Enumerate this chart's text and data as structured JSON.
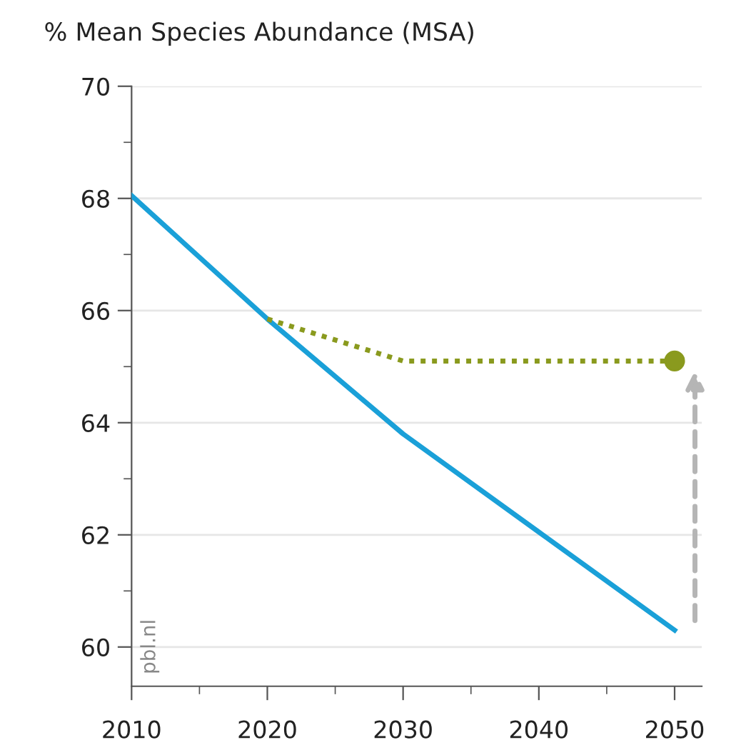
{
  "chart_data": {
    "type": "line",
    "title": "% Mean Species Abundance (MSA)",
    "x": [
      2010,
      2020,
      2030,
      2040,
      2050
    ],
    "series": [
      {
        "color": "#1aa0d8",
        "values": [
          68.05,
          65.85,
          63.8,
          62.05,
          60.3
        ],
        "line_style": "solid",
        "marker": "none"
      },
      {
        "color": "#8a9a1e",
        "x": [
          2020,
          2030,
          2050
        ],
        "values": [
          65.85,
          65.1,
          65.1
        ],
        "line_style": "dotted",
        "marker": "none"
      },
      {
        "type": "scatter",
        "color": "#8a9a1e",
        "x": [
          2050
        ],
        "values": [
          65.1
        ],
        "marker": "circle"
      }
    ],
    "xlim": [
      2010,
      2052
    ],
    "ylim": [
      59.3,
      70
    ],
    "xticks": [
      2010,
      2020,
      2030,
      2040,
      2050
    ],
    "yticks": [
      60,
      62,
      64,
      66,
      68,
      70
    ],
    "grid": "y",
    "legend": false,
    "annotations": [
      "pbl.nl"
    ]
  }
}
